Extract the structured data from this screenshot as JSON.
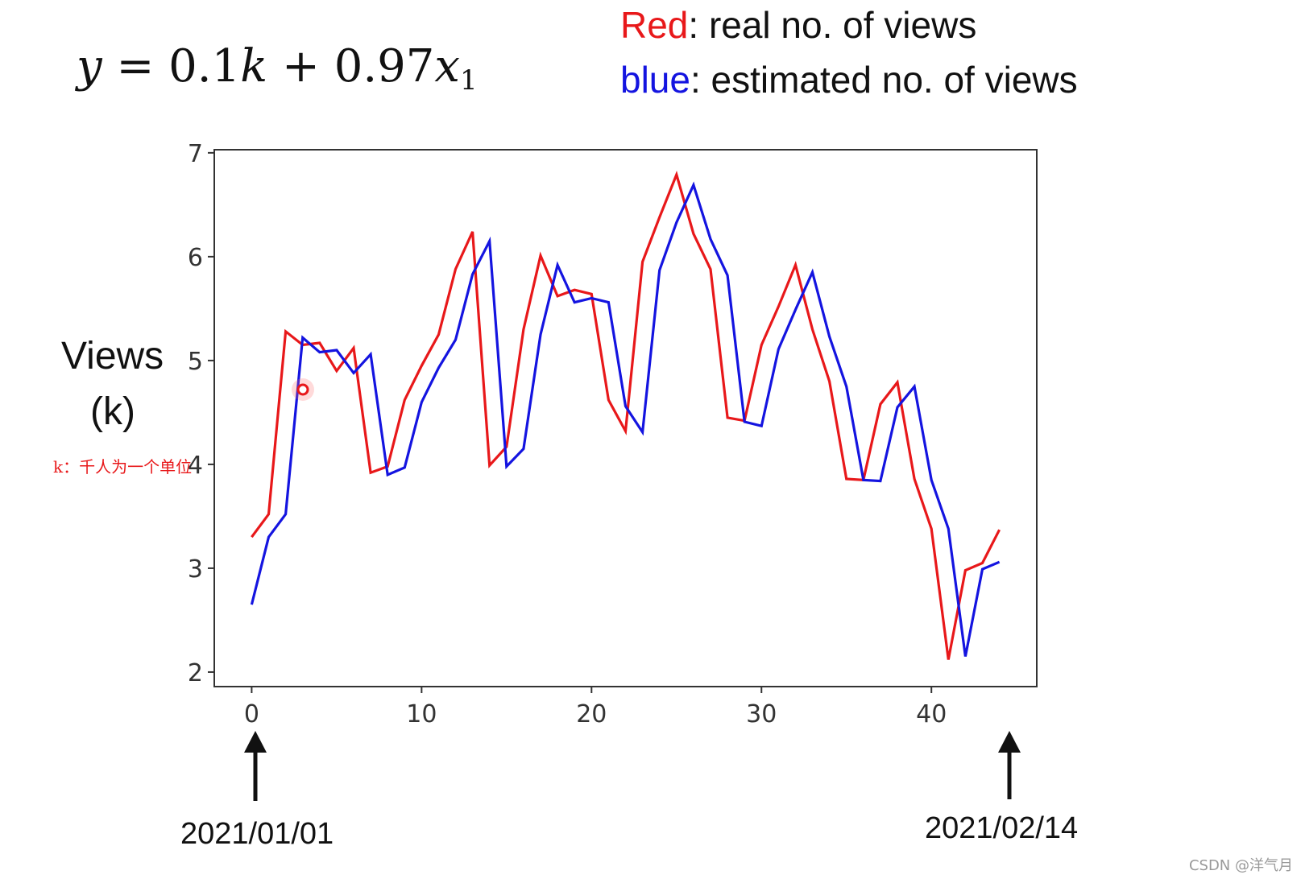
{
  "formula": {
    "y": "y",
    "eq": " = 0.1",
    "k": "k",
    "plus": " + 0.97",
    "x": "x",
    "sub": "1"
  },
  "legend": {
    "red_word": "Red",
    "red_rest": ": real no. of views",
    "blue_word": "blue",
    "blue_rest": ":  estimated no. of views"
  },
  "y_label_line1": "Views",
  "y_label_line2": "(k)",
  "note": "k：千人为一个单位",
  "dates": {
    "start": "2021/01/01",
    "end": "2021/02/14"
  },
  "watermark": "CSDN @洋气月",
  "colors": {
    "real": "#e8181a",
    "estimated": "#1414e0",
    "axes": "#333333"
  },
  "chart_data": {
    "type": "line",
    "xlabel": "",
    "ylabel": "Views (k)",
    "xlim": [
      -2.2,
      46.2
    ],
    "ylim": [
      1.86,
      7.03
    ],
    "x_ticks": [
      0,
      10,
      20,
      30,
      40
    ],
    "y_ticks": [
      2,
      3,
      4,
      5,
      6,
      7
    ],
    "grid": false,
    "legend_placement": "top-right",
    "series": [
      {
        "name": "Red",
        "color": "#e8181a",
        "x": [
          0,
          1,
          2,
          3,
          4,
          5,
          6,
          7,
          8,
          9,
          10,
          11,
          12,
          13,
          14,
          15,
          16,
          17,
          18,
          19,
          20,
          21,
          22,
          23,
          24,
          25,
          26,
          27,
          28,
          29,
          30,
          31,
          32,
          33,
          34,
          35,
          36,
          37,
          38,
          39,
          40,
          41,
          42,
          43,
          44
        ],
        "y": [
          3.3,
          3.52,
          5.28,
          5.15,
          5.17,
          4.9,
          5.12,
          3.92,
          3.98,
          4.62,
          4.95,
          5.25,
          5.88,
          6.24,
          3.99,
          4.17,
          5.3,
          6.01,
          5.62,
          5.68,
          5.64,
          4.62,
          4.32,
          5.95,
          6.38,
          6.79,
          6.22,
          5.88,
          4.45,
          4.42,
          5.15,
          5.52,
          5.92,
          5.3,
          4.8,
          3.86,
          3.85,
          4.58,
          4.79,
          3.86,
          3.38,
          2.12,
          2.98,
          3.05,
          3.37
        ]
      },
      {
        "name": "blue",
        "color": "#1414e0",
        "x": [
          0,
          1,
          2,
          3,
          4,
          5,
          6,
          7,
          8,
          9,
          10,
          11,
          12,
          13,
          14,
          15,
          16,
          17,
          18,
          19,
          20,
          21,
          22,
          23,
          24,
          25,
          26,
          27,
          28,
          29,
          30,
          31,
          32,
          33,
          34,
          35,
          36,
          37,
          38,
          39,
          40,
          41,
          42,
          43,
          44
        ],
        "y": [
          2.65,
          3.3,
          3.52,
          5.22,
          5.08,
          5.1,
          4.88,
          5.06,
          3.9,
          3.97,
          4.6,
          4.93,
          5.2,
          5.83,
          6.15,
          3.98,
          4.15,
          5.25,
          5.92,
          5.56,
          5.6,
          5.56,
          4.56,
          4.31,
          5.87,
          6.33,
          6.69,
          6.17,
          5.82,
          4.41,
          4.37,
          5.11,
          5.49,
          5.85,
          5.23,
          4.75,
          3.85,
          3.84,
          4.55,
          4.75,
          3.85,
          3.38,
          2.15,
          2.99,
          3.06
        ]
      }
    ]
  }
}
